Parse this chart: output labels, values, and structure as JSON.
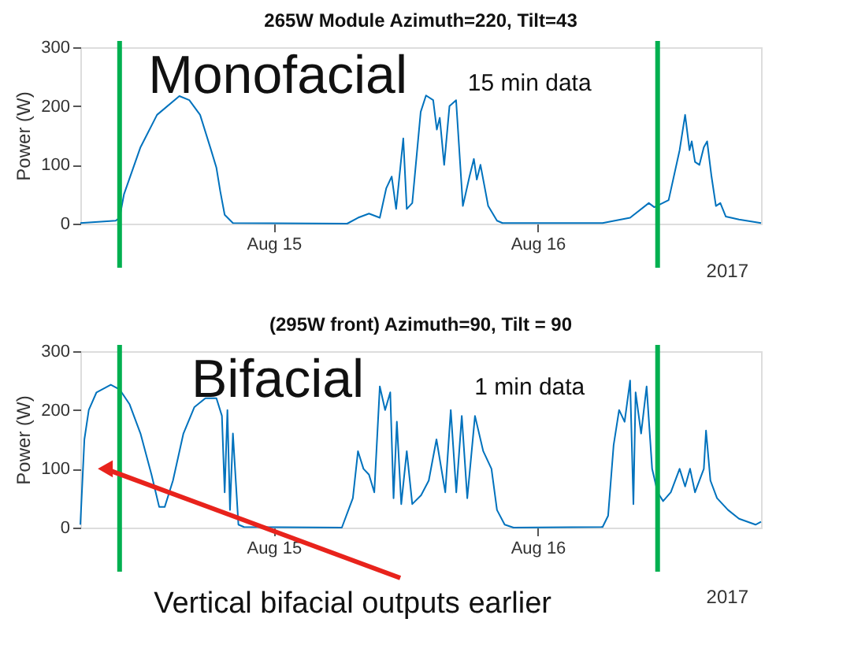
{
  "chart_data": [
    {
      "type": "line",
      "title": "265W Module Azimuth=220, Tilt=43",
      "ylabel": "Power (W)",
      "xlim": [
        "2017-08-14T06:26",
        "2017-08-16T20:18"
      ],
      "xticks": [
        {
          "value": "2017-08-15",
          "label": "Aug 15"
        },
        {
          "value": "2017-08-16",
          "label": "Aug 16"
        }
      ],
      "ylim": [
        0,
        300
      ],
      "yticks": [
        0,
        100,
        200,
        300
      ],
      "grid": false,
      "series": [
        {
          "color": "#0072bd",
          "x": [
            "2017-08-14T06:26",
            "2017-08-14T09:39",
            "2017-08-14T10:00",
            "2017-08-14T10:24",
            "2017-08-14T11:54",
            "2017-08-14T13:24",
            "2017-08-14T15:26",
            "2017-08-14T16:20",
            "2017-08-14T17:19",
            "2017-08-14T18:19",
            "2017-08-14T18:48",
            "2017-08-14T19:09",
            "2017-08-14T19:33",
            "2017-08-14T20:18",
            "2017-08-15T06:41",
            "2017-08-15T07:40",
            "2017-08-15T08:40",
            "2017-08-15T09:39",
            "2017-08-15T10:14",
            "2017-08-15T10:44",
            "2017-08-15T11:08",
            "2017-08-15T11:47",
            "2017-08-15T12:06",
            "2017-08-15T12:36",
            "2017-08-15T13:22",
            "2017-08-15T13:51",
            "2017-08-15T14:30",
            "2017-08-15T14:50",
            "2017-08-15T15:06",
            "2017-08-15T15:30",
            "2017-08-15T15:59",
            "2017-08-15T16:35",
            "2017-08-15T17:12",
            "2017-08-15T17:48",
            "2017-08-15T18:12",
            "2017-08-15T18:28",
            "2017-08-15T18:48",
            "2017-08-15T19:30",
            "2017-08-15T20:18",
            "2017-08-15T20:48",
            "2017-08-16T05:54",
            "2017-08-16T08:24",
            "2017-08-16T10:06",
            "2017-08-16T10:36",
            "2017-08-16T11:54",
            "2017-08-16T12:54",
            "2017-08-16T13:24",
            "2017-08-16T13:48",
            "2017-08-16T14:00",
            "2017-08-16T14:18",
            "2017-08-16T14:42",
            "2017-08-16T15:06",
            "2017-08-16T15:24",
            "2017-08-16T15:48",
            "2017-08-16T16:12",
            "2017-08-16T16:36",
            "2017-08-16T17:06",
            "2017-08-16T18:18",
            "2017-08-16T20:18"
          ],
          "values": [
            1,
            5,
            10,
            50,
            130,
            185,
            217,
            210,
            185,
            125,
            95,
            55,
            15,
            1,
            0,
            10,
            17,
            10,
            60,
            80,
            25,
            145,
            25,
            35,
            190,
            218,
            210,
            160,
            180,
            100,
            200,
            210,
            30,
            80,
            110,
            75,
            100,
            30,
            5,
            1,
            1,
            10,
            35,
            28,
            40,
            125,
            185,
            125,
            140,
            105,
            100,
            130,
            140,
            80,
            30,
            35,
            12,
            7,
            1
          ]
        }
      ],
      "ref_lines": [
        {
          "axis": "x",
          "value": "2017-08-14T10:00",
          "color": "#00b050"
        },
        {
          "axis": "x",
          "value": "2017-08-16T10:54",
          "color": "#00b050"
        }
      ],
      "annotations": [
        "Monofacial",
        "15 min data",
        "2017"
      ]
    },
    {
      "type": "line",
      "title": "(295W front) Azimuth=90, Tilt = 90",
      "ylabel": "Power (W)",
      "xlim": [
        "2017-08-14T06:26",
        "2017-08-16T20:18"
      ],
      "xticks": [
        {
          "value": "2017-08-15",
          "label": "Aug 15"
        },
        {
          "value": "2017-08-16",
          "label": "Aug 16"
        }
      ],
      "ylim": [
        0,
        300
      ],
      "yticks": [
        0,
        100,
        200,
        300
      ],
      "grid": false,
      "series": [
        {
          "color": "#0072bd",
          "x": [
            "2017-08-14T06:26",
            "2017-08-14T06:48",
            "2017-08-14T07:12",
            "2017-08-14T07:54",
            "2017-08-14T09:12",
            "2017-08-14T10:00",
            "2017-08-14T10:54",
            "2017-08-14T11:54",
            "2017-08-14T12:54",
            "2017-08-14T13:36",
            "2017-08-14T14:06",
            "2017-08-14T14:51",
            "2017-08-14T15:48",
            "2017-08-14T16:48",
            "2017-08-14T17:48",
            "2017-08-14T18:48",
            "2017-08-14T19:18",
            "2017-08-14T19:33",
            "2017-08-14T19:48",
            "2017-08-14T20:02",
            "2017-08-14T20:18",
            "2017-08-14T20:48",
            "2017-08-14T21:18",
            "2017-08-15T06:12",
            "2017-08-15T07:12",
            "2017-08-15T07:40",
            "2017-08-15T08:10",
            "2017-08-15T08:40",
            "2017-08-15T09:09",
            "2017-08-15T09:39",
            "2017-08-15T10:08",
            "2017-08-15T10:36",
            "2017-08-15T10:54",
            "2017-08-15T11:12",
            "2017-08-15T11:36",
            "2017-08-15T12:06",
            "2017-08-15T12:36",
            "2017-08-15T13:24",
            "2017-08-15T14:06",
            "2017-08-15T14:48",
            "2017-08-15T15:36",
            "2017-08-15T16:06",
            "2017-08-15T16:36",
            "2017-08-15T17:06",
            "2017-08-15T17:36",
            "2017-08-15T18:18",
            "2017-08-15T19:03",
            "2017-08-15T19:48",
            "2017-08-15T20:18",
            "2017-08-15T21:00",
            "2017-08-15T21:48",
            "2017-08-16T05:54",
            "2017-08-16T06:24",
            "2017-08-16T06:54",
            "2017-08-16T07:24",
            "2017-08-16T07:54",
            "2017-08-16T08:24",
            "2017-08-16T08:42",
            "2017-08-16T08:54",
            "2017-08-16T09:24",
            "2017-08-16T09:54",
            "2017-08-16T10:24",
            "2017-08-16T10:54",
            "2017-08-16T11:24",
            "2017-08-16T12:06",
            "2017-08-16T12:54",
            "2017-08-16T13:24",
            "2017-08-16T13:51",
            "2017-08-16T14:18",
            "2017-08-16T15:06",
            "2017-08-16T15:18",
            "2017-08-16T15:42",
            "2017-08-16T16:18",
            "2017-08-16T17:18",
            "2017-08-16T18:18",
            "2017-08-16T19:48",
            "2017-08-16T20:18"
          ],
          "values": [
            5,
            150,
            200,
            230,
            243,
            235,
            210,
            160,
            90,
            35,
            35,
            80,
            160,
            205,
            220,
            220,
            190,
            60,
            200,
            30,
            160,
            5,
            1,
            0,
            50,
            130,
            100,
            90,
            60,
            240,
            200,
            230,
            50,
            180,
            40,
            130,
            40,
            55,
            80,
            150,
            60,
            200,
            60,
            190,
            50,
            190,
            130,
            100,
            30,
            5,
            0,
            1,
            20,
            140,
            200,
            180,
            250,
            40,
            230,
            160,
            240,
            100,
            60,
            45,
            60,
            100,
            70,
            100,
            60,
            100,
            165,
            80,
            50,
            30,
            15,
            5,
            10
          ]
        }
      ],
      "ref_lines": [
        {
          "axis": "x",
          "value": "2017-08-14T10:00",
          "color": "#00b050"
        },
        {
          "axis": "x",
          "value": "2017-08-16T10:54",
          "color": "#00b050"
        }
      ],
      "annotations": [
        "Bifacial",
        "1 min data",
        "2017",
        {
          "text": "Vertical bifacial outputs earlier",
          "x": "2017-08-14T08:42",
          "y": 100
        }
      ]
    }
  ]
}
